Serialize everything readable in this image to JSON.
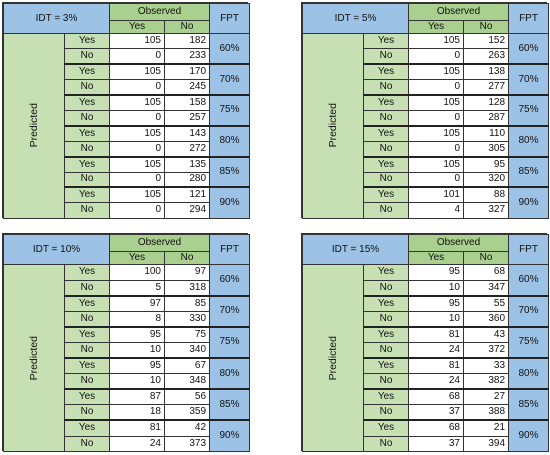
{
  "panels": [
    {
      "title": "IDT = 3%",
      "observed": "Observed",
      "col_yes": "Yes",
      "col_no": "No",
      "fpt_header": "FPT",
      "predicted": "Predicted",
      "groups": [
        {
          "fpt": "60%",
          "rows": [
            {
              "label": "Yes",
              "yes": "105",
              "no": "182"
            },
            {
              "label": "No",
              "yes": "0",
              "no": "233"
            }
          ]
        },
        {
          "fpt": "70%",
          "rows": [
            {
              "label": "Yes",
              "yes": "105",
              "no": "170"
            },
            {
              "label": "No",
              "yes": "0",
              "no": "245"
            }
          ]
        },
        {
          "fpt": "75%",
          "rows": [
            {
              "label": "Yes",
              "yes": "105",
              "no": "158"
            },
            {
              "label": "No",
              "yes": "0",
              "no": "257"
            }
          ]
        },
        {
          "fpt": "80%",
          "rows": [
            {
              "label": "Yes",
              "yes": "105",
              "no": "143"
            },
            {
              "label": "No",
              "yes": "0",
              "no": "272"
            }
          ]
        },
        {
          "fpt": "85%",
          "rows": [
            {
              "label": "Yes",
              "yes": "105",
              "no": "135"
            },
            {
              "label": "No",
              "yes": "0",
              "no": "280"
            }
          ]
        },
        {
          "fpt": "90%",
          "rows": [
            {
              "label": "Yes",
              "yes": "105",
              "no": "121"
            },
            {
              "label": "No",
              "yes": "0",
              "no": "294"
            }
          ]
        }
      ]
    },
    {
      "title": "IDT = 5%",
      "observed": "Observed",
      "col_yes": "Yes",
      "col_no": "No",
      "fpt_header": "FPT",
      "predicted": "Predicted",
      "groups": [
        {
          "fpt": "60%",
          "rows": [
            {
              "label": "Yes",
              "yes": "105",
              "no": "152"
            },
            {
              "label": "No",
              "yes": "0",
              "no": "263"
            }
          ]
        },
        {
          "fpt": "70%",
          "rows": [
            {
              "label": "Yes",
              "yes": "105",
              "no": "138"
            },
            {
              "label": "No",
              "yes": "0",
              "no": "277"
            }
          ]
        },
        {
          "fpt": "75%",
          "rows": [
            {
              "label": "Yes",
              "yes": "105",
              "no": "128"
            },
            {
              "label": "No",
              "yes": "0",
              "no": "287"
            }
          ]
        },
        {
          "fpt": "80%",
          "rows": [
            {
              "label": "Yes",
              "yes": "105",
              "no": "110"
            },
            {
              "label": "No",
              "yes": "0",
              "no": "305"
            }
          ]
        },
        {
          "fpt": "85%",
          "rows": [
            {
              "label": "Yes",
              "yes": "105",
              "no": "95"
            },
            {
              "label": "No",
              "yes": "0",
              "no": "320"
            }
          ]
        },
        {
          "fpt": "90%",
          "rows": [
            {
              "label": "Yes",
              "yes": "101",
              "no": "88"
            },
            {
              "label": "No",
              "yes": "4",
              "no": "327"
            }
          ]
        }
      ]
    },
    {
      "title": "IDT = 10%",
      "observed": "Observed",
      "col_yes": "Yes",
      "col_no": "No",
      "fpt_header": "FPT",
      "predicted": "Predicted",
      "groups": [
        {
          "fpt": "60%",
          "rows": [
            {
              "label": "Yes",
              "yes": "100",
              "no": "97"
            },
            {
              "label": "No",
              "yes": "5",
              "no": "318"
            }
          ]
        },
        {
          "fpt": "70%",
          "rows": [
            {
              "label": "Yes",
              "yes": "97",
              "no": "85"
            },
            {
              "label": "No",
              "yes": "8",
              "no": "330"
            }
          ]
        },
        {
          "fpt": "75%",
          "rows": [
            {
              "label": "Yes",
              "yes": "95",
              "no": "75"
            },
            {
              "label": "No",
              "yes": "10",
              "no": "340"
            }
          ]
        },
        {
          "fpt": "80%",
          "rows": [
            {
              "label": "Yes",
              "yes": "95",
              "no": "67"
            },
            {
              "label": "No",
              "yes": "10",
              "no": "348"
            }
          ]
        },
        {
          "fpt": "85%",
          "rows": [
            {
              "label": "Yes",
              "yes": "87",
              "no": "56"
            },
            {
              "label": "No",
              "yes": "18",
              "no": "359"
            }
          ]
        },
        {
          "fpt": "90%",
          "rows": [
            {
              "label": "Yes",
              "yes": "81",
              "no": "42"
            },
            {
              "label": "No",
              "yes": "24",
              "no": "373"
            }
          ]
        }
      ]
    },
    {
      "title": "IDT = 15%",
      "observed": "Observed",
      "col_yes": "Yes",
      "col_no": "No",
      "fpt_header": "FPT",
      "predicted": "Predicted",
      "groups": [
        {
          "fpt": "60%",
          "rows": [
            {
              "label": "Yes",
              "yes": "95",
              "no": "68"
            },
            {
              "label": "No",
              "yes": "10",
              "no": "347"
            }
          ]
        },
        {
          "fpt": "70%",
          "rows": [
            {
              "label": "Yes",
              "yes": "95",
              "no": "55"
            },
            {
              "label": "No",
              "yes": "10",
              "no": "360"
            }
          ]
        },
        {
          "fpt": "75%",
          "rows": [
            {
              "label": "Yes",
              "yes": "81",
              "no": "43"
            },
            {
              "label": "No",
              "yes": "24",
              "no": "372"
            }
          ]
        },
        {
          "fpt": "80%",
          "rows": [
            {
              "label": "Yes",
              "yes": "81",
              "no": "33"
            },
            {
              "label": "No",
              "yes": "24",
              "no": "382"
            }
          ]
        },
        {
          "fpt": "85%",
          "rows": [
            {
              "label": "Yes",
              "yes": "68",
              "no": "27"
            },
            {
              "label": "No",
              "yes": "37",
              "no": "388"
            }
          ]
        },
        {
          "fpt": "90%",
          "rows": [
            {
              "label": "Yes",
              "yes": "68",
              "no": "21"
            },
            {
              "label": "No",
              "yes": "37",
              "no": "394"
            }
          ]
        }
      ]
    }
  ]
}
